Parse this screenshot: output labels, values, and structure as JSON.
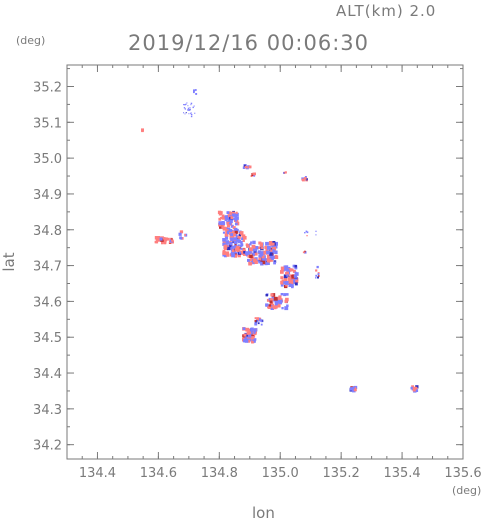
{
  "header": {
    "altitude_label": "ALT(km) 2.0",
    "timestamp": "2019/12/16 00:06:30"
  },
  "colors": {
    "axis": "#7a7a7a",
    "negative": "#7f7fff",
    "positive": "#ff7f7f",
    "dark_negative": "#3030c0",
    "dark_positive": "#c03030"
  },
  "chart_data": {
    "type": "heatmap",
    "title": "2019/12/16 00:06:30",
    "subtitle": "ALT(km) 2.0",
    "xlabel": "lon",
    "ylabel": "lat",
    "x_unit": "(deg)",
    "y_unit": "(deg)",
    "xlim": [
      134.3,
      135.6
    ],
    "ylim": [
      34.16,
      35.26
    ],
    "x_ticks": [
      "134.4",
      "134.6",
      "134.8",
      "135.0",
      "135.2",
      "135.4",
      "135.6"
    ],
    "y_ticks": [
      "34.2",
      "34.3",
      "34.4",
      "34.5",
      "34.6",
      "34.7",
      "34.8",
      "34.9",
      "35.0",
      "35.1",
      "35.2"
    ],
    "grid": false,
    "clusters": [
      {
        "lon": 134.7,
        "lat": 35.135,
        "spread_lon": 0.02,
        "spread_lat": 0.02,
        "count": 28,
        "pos_fraction": 0.0,
        "size": 1.2
      },
      {
        "lon": 134.72,
        "lat": 35.185,
        "spread_lon": 0.004,
        "spread_lat": 0.006,
        "count": 4,
        "pos_fraction": 0.0,
        "size": 2.5
      },
      {
        "lon": 134.545,
        "lat": 35.078,
        "spread_lon": 0.003,
        "spread_lat": 0.003,
        "count": 3,
        "pos_fraction": 1.0,
        "size": 2.5
      },
      {
        "lon": 134.89,
        "lat": 34.976,
        "spread_lon": 0.012,
        "spread_lat": 0.003,
        "count": 10,
        "pos_fraction": 0.1,
        "size": 2.5
      },
      {
        "lon": 134.91,
        "lat": 34.952,
        "spread_lon": 0.006,
        "spread_lat": 0.005,
        "count": 5,
        "pos_fraction": 0.8,
        "size": 2.5
      },
      {
        "lon": 135.08,
        "lat": 34.942,
        "spread_lon": 0.008,
        "spread_lat": 0.006,
        "count": 8,
        "pos_fraction": 0.7,
        "size": 2.5
      },
      {
        "lon": 135.015,
        "lat": 34.96,
        "spread_lon": 0.004,
        "spread_lat": 0.002,
        "count": 3,
        "pos_fraction": 0.3,
        "size": 2.0
      },
      {
        "lon": 134.83,
        "lat": 34.82,
        "spread_lon": 0.03,
        "spread_lat": 0.03,
        "count": 70,
        "pos_fraction": 0.5,
        "size": 3.0
      },
      {
        "lon": 134.85,
        "lat": 34.76,
        "spread_lon": 0.035,
        "spread_lat": 0.035,
        "count": 110,
        "pos_fraction": 0.5,
        "size": 3.0
      },
      {
        "lon": 134.94,
        "lat": 34.735,
        "spread_lon": 0.05,
        "spread_lat": 0.03,
        "count": 130,
        "pos_fraction": 0.45,
        "size": 3.0
      },
      {
        "lon": 134.62,
        "lat": 34.77,
        "spread_lon": 0.03,
        "spread_lat": 0.008,
        "count": 30,
        "pos_fraction": 0.55,
        "size": 2.8
      },
      {
        "lon": 134.68,
        "lat": 34.785,
        "spread_lon": 0.01,
        "spread_lat": 0.01,
        "count": 8,
        "pos_fraction": 0.3,
        "size": 2.5
      },
      {
        "lon": 135.03,
        "lat": 34.67,
        "spread_lon": 0.025,
        "spread_lat": 0.03,
        "count": 70,
        "pos_fraction": 0.4,
        "size": 3.0
      },
      {
        "lon": 134.99,
        "lat": 34.6,
        "spread_lon": 0.035,
        "spread_lat": 0.02,
        "count": 60,
        "pos_fraction": 0.55,
        "size": 3.0
      },
      {
        "lon": 134.9,
        "lat": 34.505,
        "spread_lon": 0.02,
        "spread_lat": 0.02,
        "count": 55,
        "pos_fraction": 0.55,
        "size": 3.0
      },
      {
        "lon": 134.93,
        "lat": 34.545,
        "spread_lon": 0.012,
        "spread_lat": 0.01,
        "count": 14,
        "pos_fraction": 0.2,
        "size": 2.5
      },
      {
        "lon": 135.12,
        "lat": 34.68,
        "spread_lon": 0.008,
        "spread_lat": 0.02,
        "count": 8,
        "pos_fraction": 0.2,
        "size": 1.8
      },
      {
        "lon": 135.1,
        "lat": 34.79,
        "spread_lon": 0.02,
        "spread_lat": 0.01,
        "count": 6,
        "pos_fraction": 0.2,
        "size": 1.5
      },
      {
        "lon": 135.08,
        "lat": 34.74,
        "spread_lon": 0.004,
        "spread_lat": 0.004,
        "count": 3,
        "pos_fraction": 0.7,
        "size": 2.0
      },
      {
        "lon": 135.24,
        "lat": 34.355,
        "spread_lon": 0.008,
        "spread_lat": 0.005,
        "count": 10,
        "pos_fraction": 0.5,
        "size": 2.8
      },
      {
        "lon": 135.44,
        "lat": 34.356,
        "spread_lon": 0.009,
        "spread_lat": 0.006,
        "count": 12,
        "pos_fraction": 0.5,
        "size": 2.8
      }
    ]
  }
}
